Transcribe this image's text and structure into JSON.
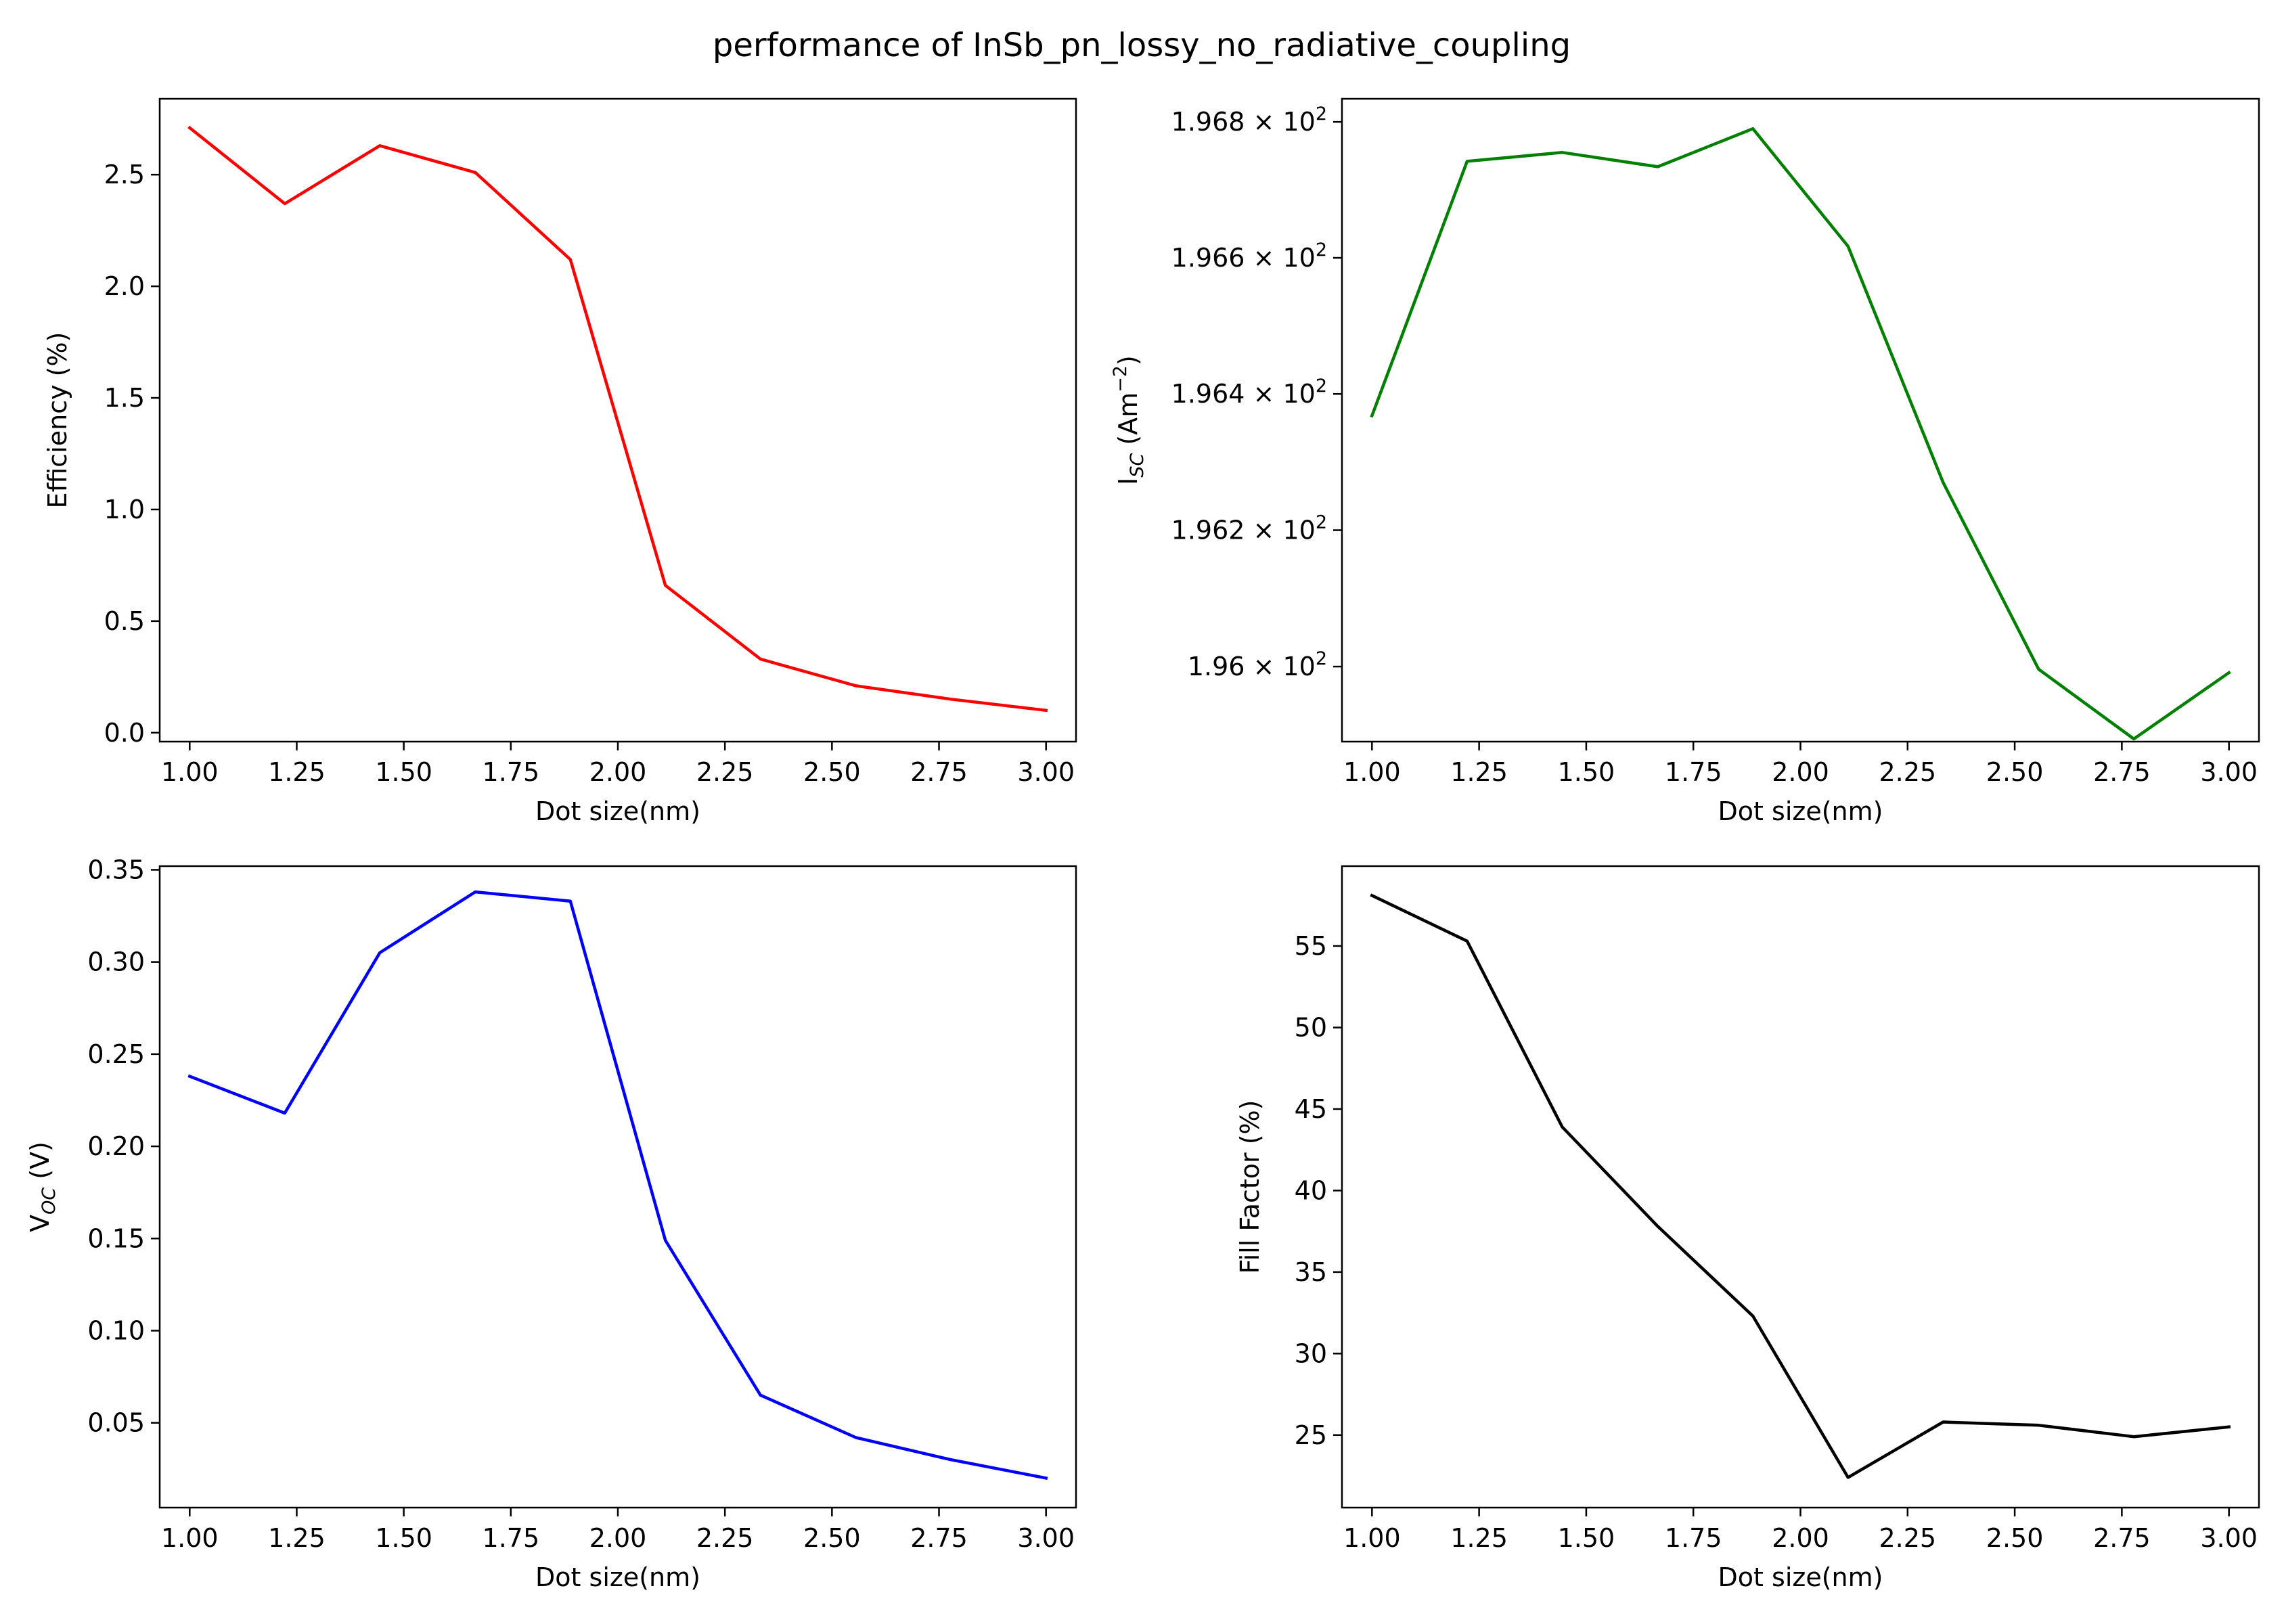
{
  "figure": {
    "title": "performance of InSb_pn_lossy_no_radiative_coupling"
  },
  "chart_data": [
    {
      "type": "line",
      "xlabel": "Dot size(nm)",
      "ylabel": "Efficiency (%)",
      "xlim": [
        0.93,
        3.07
      ],
      "ylim": [
        -0.04,
        2.84
      ],
      "xticks": [
        1.0,
        1.25,
        1.5,
        1.75,
        2.0,
        2.25,
        2.5,
        2.75,
        3.0
      ],
      "xtick_labels": [
        "1.00",
        "1.25",
        "1.50",
        "1.75",
        "2.00",
        "2.25",
        "2.50",
        "2.75",
        "3.00"
      ],
      "yticks": [
        0.0,
        0.5,
        1.0,
        1.5,
        2.0,
        2.5
      ],
      "ytick_labels": [
        "0.0",
        "0.5",
        "1.0",
        "1.5",
        "2.0",
        "2.5"
      ],
      "color": "#ff0000",
      "x": [
        1.0,
        1.222,
        1.444,
        1.667,
        1.889,
        2.111,
        2.333,
        2.556,
        2.778,
        3.0
      ],
      "y": [
        2.71,
        2.37,
        2.63,
        2.51,
        2.12,
        0.66,
        0.33,
        0.21,
        0.15,
        0.1
      ]
    },
    {
      "type": "line",
      "yscale": "log",
      "xlabel": "Dot size(nm)",
      "ylabel_main": "I",
      "ylabel_sub": "SC",
      "ylabel_rest": " (Am",
      "ylabel_sup": "−2",
      "ylabel_end": ")",
      "xlim": [
        0.93,
        3.07
      ],
      "ylim": [
        195.89,
        196.834
      ],
      "xticks": [
        1.0,
        1.25,
        1.5,
        1.75,
        2.0,
        2.25,
        2.5,
        2.75,
        3.0
      ],
      "xtick_labels": [
        "1.00",
        "1.25",
        "1.50",
        "1.75",
        "2.00",
        "2.25",
        "2.50",
        "2.75",
        "3.00"
      ],
      "yticks": [
        196.0,
        196.2,
        196.4,
        196.6,
        196.8
      ],
      "ytick_mantissas": [
        "1.96",
        "1.962",
        "1.964",
        "1.966",
        "1.968"
      ],
      "ytick_times": "× 10",
      "ytick_exponent": "2",
      "color": "#008000",
      "x": [
        1.0,
        1.222,
        1.444,
        1.667,
        1.889,
        2.111,
        2.333,
        2.556,
        2.778,
        3.0
      ],
      "y": [
        196.368,
        196.742,
        196.755,
        196.734,
        196.79,
        196.617,
        196.27,
        195.996,
        195.894,
        195.991
      ]
    },
    {
      "type": "line",
      "xlabel": "Dot size(nm)",
      "ylabel_main": "V",
      "ylabel_sub": "OC",
      "ylabel_rest": " (V)",
      "xlim": [
        0.93,
        3.07
      ],
      "ylim": [
        0.004,
        0.352
      ],
      "xticks": [
        1.0,
        1.25,
        1.5,
        1.75,
        2.0,
        2.25,
        2.5,
        2.75,
        3.0
      ],
      "xtick_labels": [
        "1.00",
        "1.25",
        "1.50",
        "1.75",
        "2.00",
        "2.25",
        "2.50",
        "2.75",
        "3.00"
      ],
      "yticks": [
        0.05,
        0.1,
        0.15,
        0.2,
        0.25,
        0.3,
        0.35
      ],
      "ytick_labels": [
        "0.05",
        "0.10",
        "0.15",
        "0.20",
        "0.25",
        "0.30",
        "0.35"
      ],
      "color": "#0000ff",
      "x": [
        1.0,
        1.222,
        1.444,
        1.667,
        1.889,
        2.111,
        2.333,
        2.556,
        2.778,
        3.0
      ],
      "y": [
        0.238,
        0.218,
        0.305,
        0.338,
        0.333,
        0.149,
        0.065,
        0.042,
        0.03,
        0.02
      ]
    },
    {
      "type": "line",
      "xlabel": "Dot size(nm)",
      "ylabel": "Fill Factor (%)",
      "xlim": [
        0.93,
        3.07
      ],
      "ylim": [
        20.55,
        59.9
      ],
      "xticks": [
        1.0,
        1.25,
        1.5,
        1.75,
        2.0,
        2.25,
        2.5,
        2.75,
        3.0
      ],
      "xtick_labels": [
        "1.00",
        "1.25",
        "1.50",
        "1.75",
        "2.00",
        "2.25",
        "2.50",
        "2.75",
        "3.00"
      ],
      "yticks": [
        25,
        30,
        35,
        40,
        45,
        50,
        55
      ],
      "ytick_labels": [
        "25",
        "30",
        "35",
        "40",
        "45",
        "50",
        "55"
      ],
      "color": "#000000",
      "x": [
        1.0,
        1.222,
        1.444,
        1.667,
        1.889,
        2.111,
        2.333,
        2.556,
        2.778,
        3.0
      ],
      "y": [
        58.1,
        55.3,
        43.9,
        37.8,
        32.3,
        22.4,
        25.8,
        25.6,
        24.9,
        25.5
      ]
    }
  ]
}
